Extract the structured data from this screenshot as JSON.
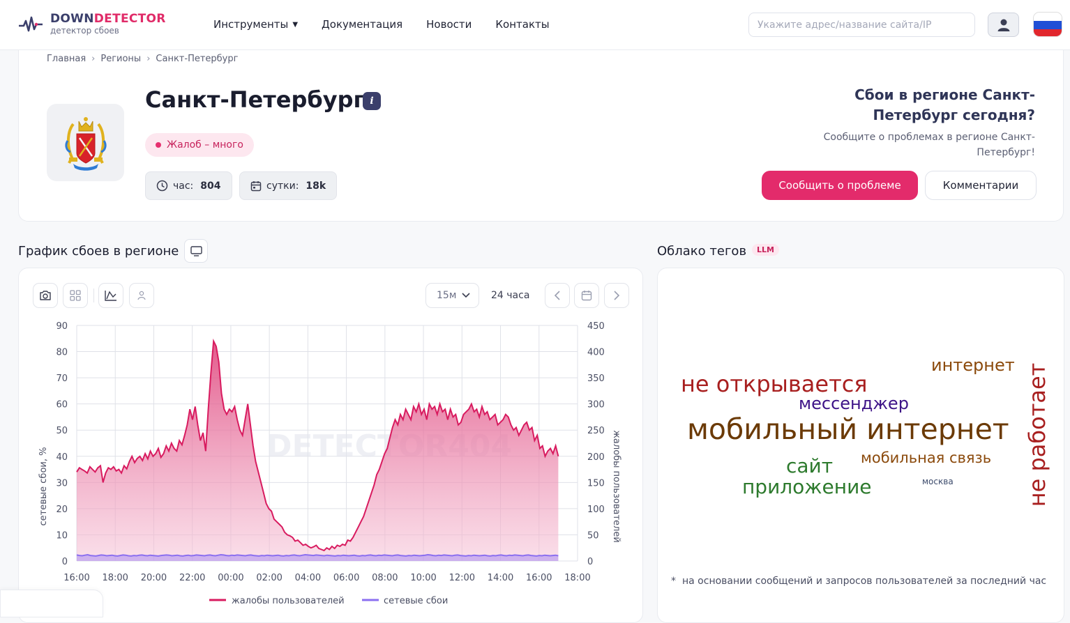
{
  "header": {
    "logo_title_a": "DOWN",
    "logo_title_b": "DETECTOR",
    "logo_subtitle": "детектор сбоев",
    "nav": [
      "Инструменты",
      "Документация",
      "Новости",
      "Контакты"
    ],
    "search_placeholder": "Укажите адрес/название сайта/IP",
    "user_icon": "user-icon",
    "flag_icon": "russia-flag-icon"
  },
  "breadcrumbs": [
    "Главная",
    "Регионы",
    "Санкт-Петербург"
  ],
  "region": {
    "title": "Санкт-Петербург",
    "info_glyph": "i",
    "status": "Жалоб – много",
    "stat_hour_label": "час:",
    "stat_hour_value": "804",
    "stat_day_label": "сутки:",
    "stat_day_value": "18k",
    "question": "Сбои в регионе Санкт-Петербург сегодня?",
    "question_sub": "Сообщите о проблемах в регионе Санкт-Петербург!",
    "report_button": "Сообщить о проблеме",
    "comments_button": "Комментарии"
  },
  "chart_section": {
    "title": "График сбоев в регионе",
    "interval_select": "15м",
    "period_label": "24 часа",
    "watermark": "DETECTOR404"
  },
  "cloud_section": {
    "title": "Облако тегов",
    "badge": "LLM",
    "note_marker": "*",
    "note": "на основании сообщений и запросов пользователей за последний час",
    "tags": [
      {
        "text": "не открывается",
        "color": "#a81f1f"
      },
      {
        "text": "интернет",
        "color": "#8b4a0c"
      },
      {
        "text": "мессенджер",
        "color": "#3d1387"
      },
      {
        "text": "мобильный интернет",
        "color": "#6b3a06"
      },
      {
        "text": "сайт",
        "color": "#2d7a2d"
      },
      {
        "text": "мобильная связь",
        "color": "#8b4a0c"
      },
      {
        "text": "приложение",
        "color": "#2d7a2d"
      },
      {
        "text": "москва",
        "color": "#3b4a6b"
      },
      {
        "text": "не работает",
        "color": "#a81f1f"
      }
    ]
  },
  "chart_data": {
    "type": "area",
    "x_ticks": [
      "16:00",
      "18:00",
      "20:00",
      "22:00",
      "00:00",
      "02:00",
      "04:00",
      "06:00",
      "08:00",
      "10:00",
      "12:00",
      "14:00",
      "16:00",
      "18:00"
    ],
    "y_left_label": "сетевые сбои, %",
    "y_left_ticks": [
      "0",
      "10",
      "20",
      "30",
      "40",
      "50",
      "60",
      "70",
      "80",
      "90"
    ],
    "y_left_range": [
      0,
      90
    ],
    "y_right_label": "жалобы пользователей",
    "y_right_ticks": [
      "0",
      "50",
      "100",
      "150",
      "200",
      "250",
      "300",
      "350",
      "400",
      "450"
    ],
    "y_right_range": [
      0,
      450
    ],
    "grid": true,
    "legend_position": "bottom",
    "series": [
      {
        "name": "жалобы пользователей",
        "axis": "right",
        "color": "#d81b5f",
        "values": [
          170,
          178,
          175,
          172,
          168,
          180,
          175,
          170,
          178,
          182,
          150,
          168,
          178,
          175,
          180,
          172,
          175,
          168,
          182,
          176,
          190,
          200,
          188,
          196,
          200,
          192,
          205,
          195,
          210,
          200,
          205,
          215,
          198,
          205,
          220,
          210,
          225,
          215,
          210,
          230,
          222,
          240,
          260,
          290,
          270,
          295,
          260,
          230,
          245,
          210,
          290,
          360,
          420,
          410,
          380,
          320,
          290,
          280,
          290,
          285,
          295,
          270,
          250,
          240,
          270,
          300,
          260,
          220,
          190,
          170,
          150,
          130,
          110,
          100,
          95,
          80,
          75,
          70,
          65,
          55,
          50,
          48,
          45,
          38,
          40,
          35,
          30,
          32,
          28,
          25,
          27,
          30,
          24,
          22,
          20,
          25,
          22,
          28,
          24,
          30,
          28,
          32,
          30,
          40,
          38,
          45,
          55,
          65,
          75,
          85,
          100,
          115,
          130,
          145,
          165,
          175,
          190,
          205,
          215,
          235,
          255,
          270,
          260,
          280,
          270,
          290,
          280,
          270,
          295,
          285,
          300,
          280,
          290,
          270,
          300,
          290,
          295,
          280,
          300,
          285,
          290,
          270,
          290,
          275,
          280,
          260,
          265,
          280,
          285,
          290,
          300,
          285,
          290,
          275,
          295,
          280,
          285,
          270,
          275,
          280,
          260,
          265,
          270,
          280,
          275,
          260,
          250,
          255,
          240,
          250,
          260,
          265,
          250,
          255,
          230,
          240,
          215,
          220,
          200,
          210,
          215,
          205,
          220,
          200
        ]
      },
      {
        "name": "сетевые сбои",
        "axis": "left",
        "color": "#8b6ff0",
        "values": [
          2.3,
          2.1,
          2.0,
          2.2,
          2.4,
          2.1,
          2.0,
          1.9,
          2.1,
          2.3,
          2.2,
          2.0,
          2.1,
          2.2,
          2.0,
          1.9,
          2.1,
          2.3,
          2.2,
          2.0,
          1.9,
          2.1,
          2.0,
          2.2,
          2.3,
          2.1,
          2.0,
          2.2,
          2.1,
          2.0,
          1.9,
          2.1,
          2.2,
          2.3,
          2.2,
          2.0,
          2.1,
          2.2,
          2.0,
          1.9,
          2.1,
          2.2,
          2.0,
          2.1,
          2.3,
          2.2,
          2.1,
          2.0,
          2.2,
          2.3,
          2.1,
          2.0,
          2.2,
          2.4,
          2.3,
          2.1,
          2.0,
          2.2,
          2.1,
          2.3,
          2.2,
          2.1,
          2.0,
          2.2,
          2.3,
          2.1,
          2.0,
          1.9,
          2.1,
          2.0,
          2.2,
          2.1,
          2.0,
          2.1,
          2.2,
          2.0,
          1.9,
          2.1,
          2.0,
          2.2,
          2.3,
          2.1,
          2.0,
          2.2,
          2.4,
          2.3,
          2.2,
          2.1,
          2.3,
          2.2,
          2.1,
          2.0,
          2.2,
          2.1,
          2.0,
          1.9,
          2.1,
          2.0,
          2.2,
          2.1,
          2.0,
          2.1,
          2.2,
          2.0,
          1.9,
          2.1,
          2.0,
          2.2,
          2.3,
          2.1,
          2.0,
          2.2,
          2.1,
          2.3,
          2.2,
          2.1,
          2.0,
          2.2,
          2.3,
          2.1,
          2.0,
          1.9,
          2.1,
          2.0,
          2.2,
          2.1,
          2.0,
          2.1,
          2.2,
          2.4,
          2.3,
          2.1,
          2.0,
          2.2,
          2.1,
          2.3,
          2.2,
          2.1,
          2.0,
          2.2,
          2.3,
          2.1,
          2.0,
          1.9,
          2.1,
          2.0,
          2.2,
          2.1,
          2.0,
          2.1,
          2.2,
          2.0,
          1.9,
          2.1,
          2.0,
          2.2,
          2.3,
          2.1,
          2.0,
          2.2,
          2.1,
          2.3,
          2.2,
          2.1,
          2.0,
          2.2,
          2.3,
          2.1,
          2.0,
          1.9,
          2.1,
          2.0,
          2.2,
          2.1,
          2.0,
          2.1,
          2.2,
          2.0
        ]
      }
    ]
  }
}
